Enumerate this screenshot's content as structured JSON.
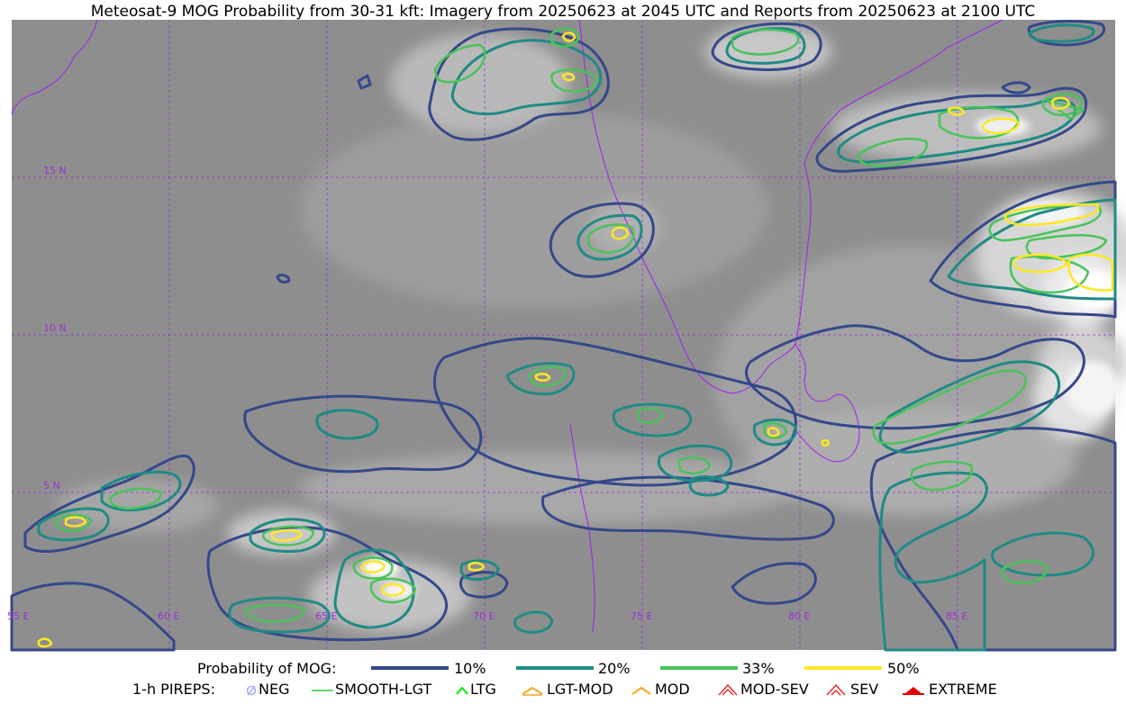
{
  "title": "Meteosat-9 MOG Probability from 30-31 kft: Imagery from 20250623 at 2045 UTC and Reports from 20250623 at 2100 UTC",
  "map": {
    "lat_labels": [
      "15 N",
      "10 N",
      "5 N"
    ],
    "lon_labels": [
      "55 E",
      "60 E",
      "65 E",
      "70 E",
      "75 E",
      "80 E",
      "85 E"
    ],
    "grid_color": "#9b30d9",
    "coast_color": "#a020f0"
  },
  "legend": {
    "probability": {
      "label": "Probability of MOG:",
      "items": [
        {
          "text": "10%",
          "color": "#34488a"
        },
        {
          "text": "20%",
          "color": "#1f8a85"
        },
        {
          "text": "33%",
          "color": "#49c35a"
        },
        {
          "text": "50%",
          "color": "#fde725"
        }
      ]
    },
    "pireps": {
      "label": "1-h PIREPS:",
      "items": [
        {
          "text": "NEG",
          "icon": "neg-icon",
          "color": "#a9a9ff"
        },
        {
          "text": "SMOOTH-LGT",
          "icon": "smooth-lgt-icon",
          "color": "#32cd32"
        },
        {
          "text": "LTG",
          "icon": "ltg-icon",
          "color": "#00ee00"
        },
        {
          "text": "LGT-MOD",
          "icon": "lgt-mod-icon",
          "color": "#f5a623"
        },
        {
          "text": "MOD",
          "icon": "mod-icon",
          "color": "#f5a623"
        },
        {
          "text": "MOD-SEV",
          "icon": "mod-sev-icon",
          "color": "#e53030"
        },
        {
          "text": "SEV",
          "icon": "sev-icon",
          "color": "#e53030"
        },
        {
          "text": "EXTREME",
          "icon": "extreme-icon",
          "color": "#e60000"
        }
      ]
    }
  }
}
